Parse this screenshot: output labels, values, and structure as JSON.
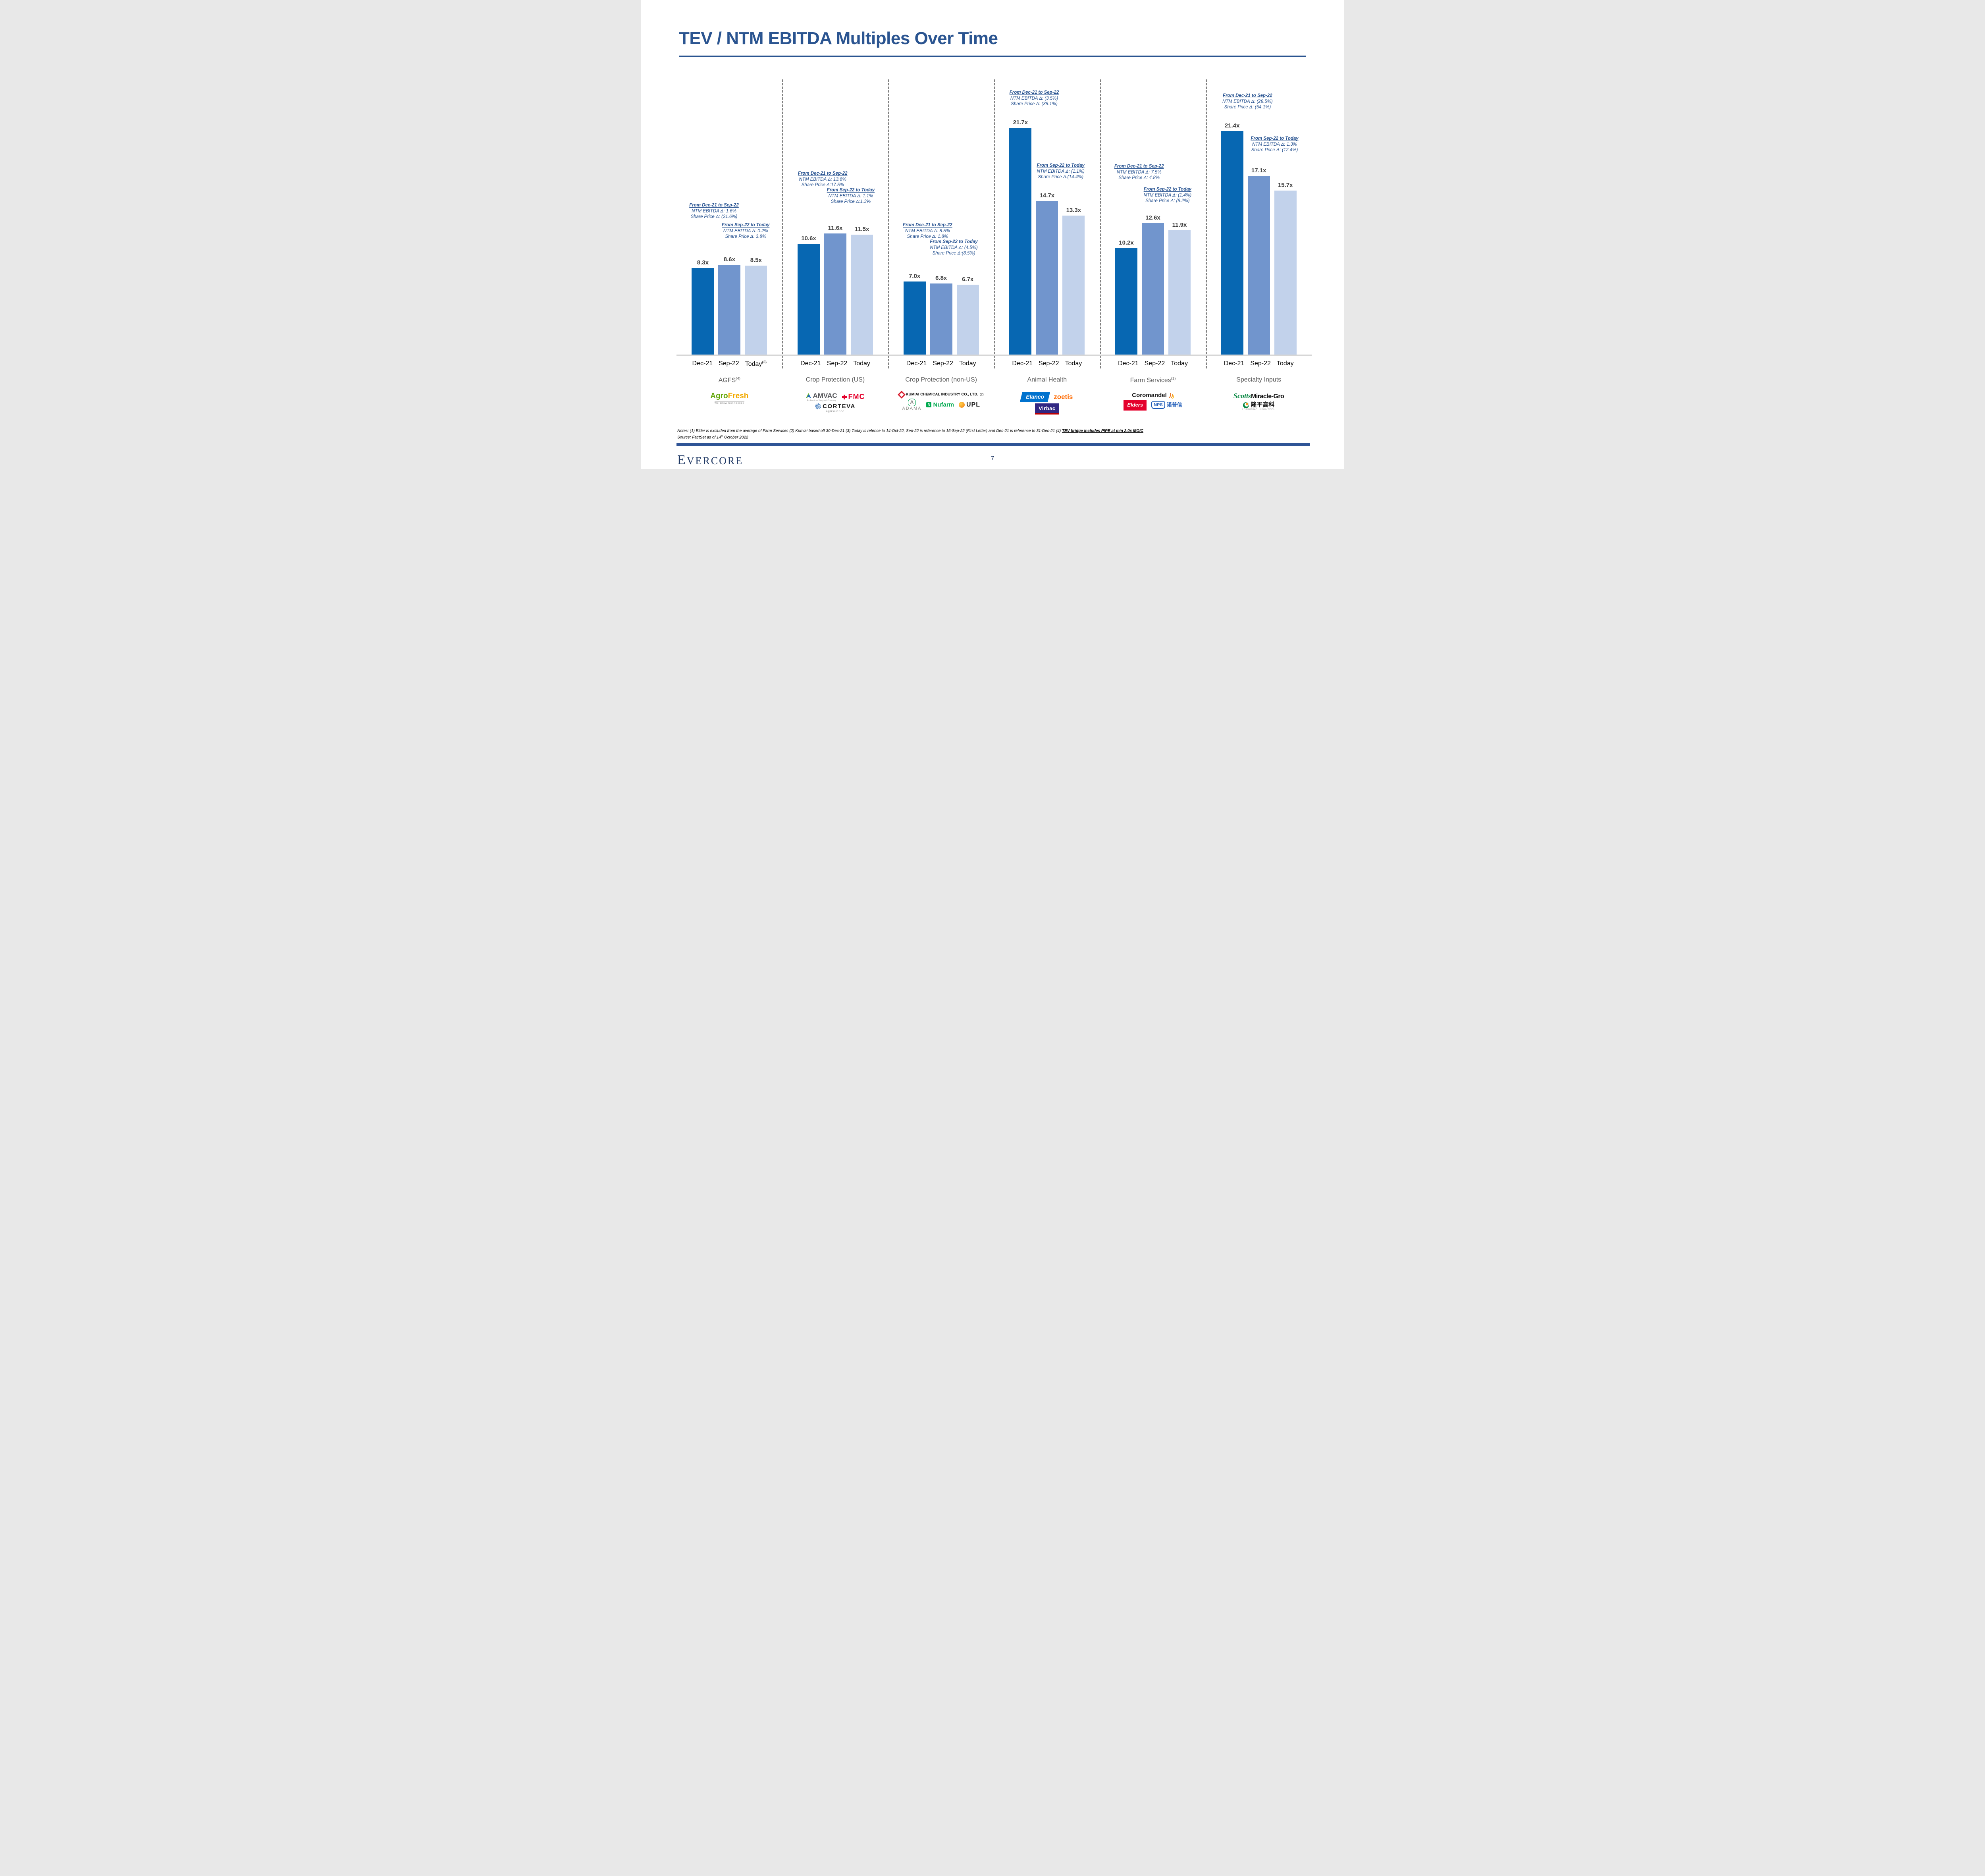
{
  "slide": {
    "title": "TEV / NTM EBITDA Multiples Over Time",
    "page_number": "7",
    "brand": "EVERCORE",
    "notes_prefix": "Notes: (1) Elder is excluded from the average of Farm Services (2) Kumiai based off 30-Dec-21 (3) Today is refence to 14-Oct-22, Sep-22 is reference to 15-Sep-22 (First Letter) and Dec-21 is reference to 31-Dec-21 (4) ",
    "notes_underlined": "TEV bridge includes PIPE at min 2.0x MOIC",
    "source_prefix": "Source: FactSet as of 14",
    "source_sup": "th",
    "source_suffix": " October 2022"
  },
  "colors": {
    "accent_navy": "#2A5490",
    "annotation_blue": "#24508F",
    "value_label_gray": "#404040",
    "group_title_gray": "#595959",
    "footer_bar_navy": "#2F5496"
  },
  "chart_data": {
    "type": "bar",
    "title": "TEV / NTM EBITDA Multiples Over Time",
    "unit": "TEV / NTM EBITDA multiple (x)",
    "categories": [
      "Dec-21",
      "Sep-22",
      "Today"
    ],
    "ylim": [
      0,
      28
    ],
    "grid": false,
    "legend": "none",
    "series_colors": {
      "Dec-21": "#0767B2",
      "Sep-22": "#7195CD",
      "Today": "#C2D2EB"
    },
    "groups": [
      {
        "name": "AGFS",
        "name_sup": "(4)",
        "today_sup": "(3)",
        "values": [
          8.3,
          8.6,
          8.5
        ],
        "labels": [
          "8.3x",
          "8.6x",
          "8.5x"
        ],
        "annotations": [
          {
            "heading": "From Dec-21 to Sep-22",
            "lines": [
              "NTM EBITDA Δ: 1.6%",
              "Share Price Δ: (21.6%)"
            ]
          },
          {
            "heading": "From Sep-22 to Today",
            "lines": [
              "NTM EBITDA Δ: 0.2%",
              "Share Price Δ: 3.8%"
            ]
          }
        ]
      },
      {
        "name": "Crop Protection (US)",
        "name_sup": "",
        "values": [
          10.6,
          11.6,
          11.5
        ],
        "labels": [
          "10.6x",
          "11.6x",
          "11.5x"
        ],
        "annotations": [
          {
            "heading": "From Dec-21 to Sep-22",
            "lines": [
              "NTM EBITDA Δ: 13.6%",
              "Share Price Δ:17.5%"
            ]
          },
          {
            "heading": "From Sep-22 to Today",
            "lines": [
              "NTM EBITDA Δ: 1.1%",
              "Share Price Δ:1.3%"
            ]
          }
        ]
      },
      {
        "name": "Crop Protection (non-US)",
        "name_sup": "",
        "values": [
          7.0,
          6.8,
          6.7
        ],
        "labels": [
          "7.0x",
          "6.8x",
          "6.7x"
        ],
        "annotations": [
          {
            "heading": "From Dec-21 to Sep-22",
            "lines": [
              "NTM EBITDA Δ: 8.5%",
              "Share Price Δ: 1.8%"
            ]
          },
          {
            "heading": "From Sep-22 to Today",
            "lines": [
              "NTM EBITDA Δ: (4.5%)",
              "Share Price Δ:(8.5%)"
            ]
          }
        ]
      },
      {
        "name": "Animal Health",
        "name_sup": "",
        "values": [
          21.7,
          14.7,
          13.3
        ],
        "labels": [
          "21.7x",
          "14.7x",
          "13.3x"
        ],
        "annotations": [
          {
            "heading": "From Dec-21 to Sep-22",
            "lines": [
              "NTM EBITDA Δ: (3.5%)",
              "Share Price Δ: (38.1%)"
            ]
          },
          {
            "heading": "From Sep-22 to Today",
            "lines": [
              "NTM EBITDA Δ: (1.1%)",
              "Share Price Δ:(14.4%)"
            ]
          }
        ]
      },
      {
        "name": "Farm Services",
        "name_sup": "(1)",
        "values": [
          10.2,
          12.6,
          11.9
        ],
        "labels": [
          "10.2x",
          "12.6x",
          "11.9x"
        ],
        "annotations": [
          {
            "heading": "From Dec-21 to Sep-22",
            "lines": [
              "NTM EBITDA Δ: 7.5%",
              "Share Price Δ: 4.8%"
            ]
          },
          {
            "heading": "From Sep-22 to Today",
            "lines": [
              "NTM EBITDA Δ: (1.4%)",
              "Share Price Δ: (8.2%)"
            ]
          }
        ]
      },
      {
        "name": "Specialty Inputs",
        "name_sup": "",
        "values": [
          21.4,
          17.1,
          15.7
        ],
        "labels": [
          "21.4x",
          "17.1x",
          "15.7x"
        ],
        "annotations": [
          {
            "heading": "From Dec-21 to Sep-22",
            "lines": [
              "NTM EBITDA Δ: (28.5%)",
              "Share Price Δ: (54.1%)"
            ]
          },
          {
            "heading": "From Sep-22 to Today",
            "lines": [
              "NTM EBITDA Δ: 1.3%",
              "Share Price Δ: (12.4%)"
            ]
          }
        ]
      }
    ]
  },
  "logos": {
    "agrofresh": {
      "part1": "Agro",
      "part2": "Fresh",
      "tagline": "We Grow Confidence"
    },
    "amvac": {
      "text": "AMVAC",
      "tagline": "An American Vanguard Company"
    },
    "fmc": {
      "text": "FMC"
    },
    "corteva": {
      "text": "CORTEVA",
      "sub": "agriscience"
    },
    "kumiai": {
      "text": "KUMIAI CHEMICAL INDUSTRY CO., LTD.",
      "sup": "(2)"
    },
    "adama": {
      "mark": "A",
      "text": "ADAMA"
    },
    "nufarm": {
      "mark": "N",
      "text": "Nufarm"
    },
    "upl": {
      "text": "UPL"
    },
    "elanco": {
      "text": "Elanco"
    },
    "zoetis": {
      "text": "zoetis"
    },
    "virbac": {
      "text": "Virbac"
    },
    "coromandel": {
      "text": "Coromandel"
    },
    "elders": {
      "text": "Elders"
    },
    "nps": {
      "text": "NPS",
      "cn": "诺普信"
    },
    "scotts": {
      "part1": "Scotts",
      "part2": "Miracle-Gro"
    },
    "longping": {
      "cn": "隆平高科",
      "en": "LONGPING HIGH-TECH"
    }
  }
}
